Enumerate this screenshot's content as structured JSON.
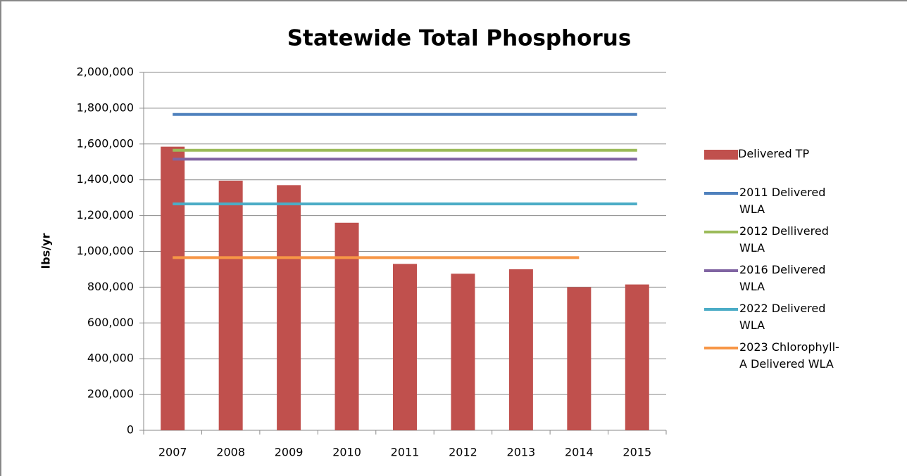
{
  "chart_data": {
    "type": "bar",
    "title": "Statewide Total Phosphorus",
    "y_label": "lbs/yr",
    "categories": [
      "2007",
      "2008",
      "2009",
      "2010",
      "2011",
      "2012",
      "2013",
      "2014",
      "2015"
    ],
    "series": [
      {
        "name": "Delivered TP",
        "type": "bar",
        "color": "#c0504d",
        "values": [
          1585000,
          1395000,
          1370000,
          1160000,
          930000,
          875000,
          900000,
          800000,
          815000
        ]
      },
      {
        "name": "2011 Delivered WLA",
        "type": "line",
        "color": "#4f81bd",
        "values": [
          1765000,
          1765000,
          1765000,
          1765000,
          1765000,
          1765000,
          1765000,
          1765000,
          1765000
        ]
      },
      {
        "name": "2012 Dellivered WLA",
        "type": "line",
        "color": "#9bbb59",
        "values": [
          1565000,
          1565000,
          1565000,
          1565000,
          1565000,
          1565000,
          1565000,
          1565000,
          1565000
        ]
      },
      {
        "name": "2016 Delivered WLA",
        "type": "line",
        "color": "#8064a2",
        "values": [
          1515000,
          1515000,
          1515000,
          1515000,
          1515000,
          1515000,
          1515000,
          1515000,
          1515000
        ]
      },
      {
        "name": "2022 Delivered WLA",
        "type": "line",
        "color": "#4bacc6",
        "values": [
          1265000,
          1265000,
          1265000,
          1265000,
          1265000,
          1265000,
          1265000,
          1265000,
          1265000
        ]
      },
      {
        "name": "2023 Chlorophyll-A Delivered WLA",
        "type": "line",
        "color": "#f79646",
        "values": [
          965000,
          965000,
          965000,
          965000,
          965000,
          965000,
          965000,
          965000,
          null
        ]
      }
    ],
    "ylim": [
      0,
      2000000
    ],
    "yticks": [
      0,
      {
        "value": 200000,
        "label": "200,000"
      },
      {
        "value": 400000,
        "label": "400,000"
      },
      {
        "value": 600000,
        "label": "600,000"
      },
      {
        "value": 800000,
        "label": "800,000"
      },
      {
        "value": 1000000,
        "label": "1,000,000"
      },
      {
        "value": 1200000,
        "label": "1,200,000"
      },
      {
        "value": 1400000,
        "label": "1,400,000"
      },
      {
        "value": 1600000,
        "label": "1,600,000"
      },
      {
        "value": 1800000,
        "label": "1,800,000"
      },
      {
        "value": 2000000,
        "label": "2,000,000"
      }
    ],
    "grid": true,
    "legend": "right"
  }
}
